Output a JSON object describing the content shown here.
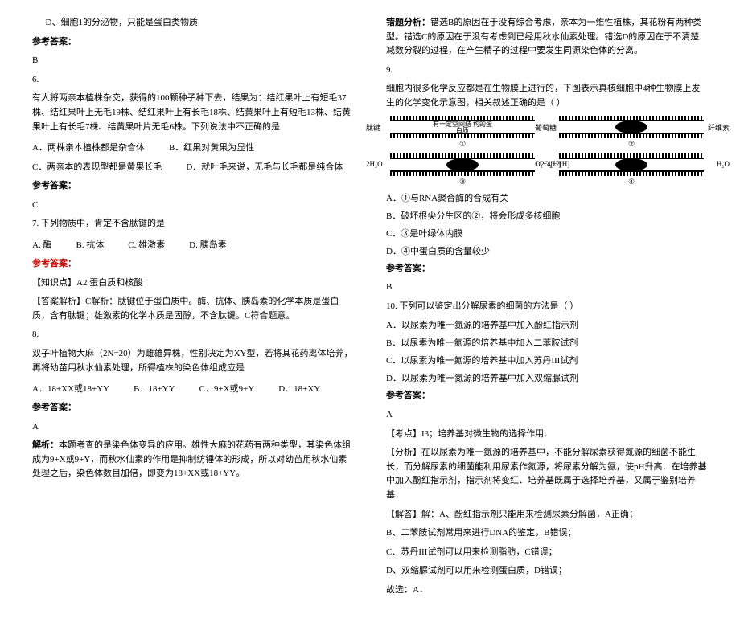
{
  "left": {
    "q5_d": "D、细胞1的分泌物，只能是蛋白类物质",
    "ans_label": "参考答案：",
    "ans5": "B",
    "q6_num": "6.",
    "q6_body": "有人将两亲本植株杂交，获得的100颗种子种下去，结果为：结红果叶上有短毛37株、结红果叶上无毛19株、结红果叶上有长毛18株、结黄果叶上有短毛13株、结黄果叶上有长毛7株、结黄果叶片无毛6株。下列说法中不正确的是",
    "q6_a": "A．两株亲本植株都是杂合体",
    "q6_b": "B．红果对黄果为显性",
    "q6_c": "C．两亲本的表现型都是黄果长毛",
    "q6_d": "D．就叶毛来说，无毛与长毛都是纯合体",
    "ans6": "C",
    "q7": "7. 下列物质中，肯定不含肽键的是",
    "q7_a": "A. 酶",
    "q7_b": "B. 抗体",
    "q7_c": "C. 雄激素",
    "q7_d": "D. 胰岛素",
    "kp_label": "【知识点】",
    "kp7": "A2  蛋白质和核酸",
    "exp_label": "【答案解析】",
    "exp7": "C解析：肽键位于蛋白质中。酶、抗体、胰岛素的化学本质是蛋白质，含有肽键；雄激素的化学本质是固醇，不含肽键。C符合题意。",
    "q8_num": "8.",
    "q8_body": "双子叶植物大麻（2N=20）为雌雄异株，性别决定为XY型，若将其花药离体培养，再将幼苗用秋水仙素处理，所得植株的染色体组成应是",
    "q8_a": "A．18+XX或18+YY",
    "q8_b": "B．18+YY",
    "q8_c": "C．9+X或9+Y",
    "q8_d": "D．18+XY",
    "ans8": "A",
    "exp8_label": "解析：",
    "exp8": "本题考查的是染色体变异的应用。雄性大麻的花药有两种类型，其染色体组成为9+X或9+Y，而秋水仙素的作用是抑制纺锤体的形成，所以对幼苗用秋水仙素处理之后，染色体数目加倍，即变为18+XX或18+YY。"
  },
  "right": {
    "err_label": "错题分析：",
    "err": "错选B的原因在于没有综合考虑，亲本为一维性植株，其花粉有两种类型。错选C的原因在于没有考虑到已经用秋水仙素处理。错选D的原因在于不清楚减数分裂的过程，在产生精子的过程中要发生同源染色体的分离。",
    "q9_num": "9.",
    "q9_body": "细胞内很多化学反应都是在生物膜上进行的，下图表示真核细胞中4种生物膜上发生的化学变化示意图，相关叙述正确的是（    ）",
    "d_tl_left": "肽键",
    "d_tl_center": "有一定空间结\n构的蛋白质",
    "d_tl_num": "①",
    "d_tr_left": "葡萄糖",
    "d_tr_right": "纤维素",
    "d_tr_num": "②",
    "d_bl_left": "2H₂O",
    "d_bl_right": "O₂+4[H]",
    "d_bl_num": "③",
    "d_br_left": "1/2O₂+2[H]",
    "d_br_right": "H₂O",
    "d_br_num": "④",
    "q9_a": "A．①与RNA聚合酶的合成有关",
    "q9_b": "B．破坏根尖分生区的②，将会形成多核细胞",
    "q9_c": "C．③是叶绿体内膜",
    "q9_d": "D．④中蛋白质的含量较少",
    "ans9": "B",
    "q10": "10. 下列可以鉴定出分解尿素的细菌的方法是（    ）",
    "q10_a": "A．以尿素为唯一氮源的培养基中加入酚红指示剂",
    "q10_b": "B．以尿素为唯一氮源的培养基中加入二苯胺试剂",
    "q10_c": "C．以尿素为唯一氮源的培养基中加入苏丹III试剂",
    "q10_d": "D．以尿素为唯一氮源的培养基中加入双缩脲试剂",
    "ans10": "A",
    "kp10_label": "【考点】",
    "kp10": "I3；培养基对微生物的选择作用．",
    "an_label": "【分析】",
    "an10": "在以尿素为唯一氮源的培养基中，不能分解尿素获得氮源的细菌不能生长，而分解尿素的细菌能利用尿素作氮源，将尿素分解为氨，使pH升高．在培养基中加入酚红指示剂，指示剂将变红．培养基既属于选择培养基，又属于鉴别培养基．",
    "sol_label": "【解答】",
    "sol_a": "解：A、酚红指示剂只能用来检测尿素分解菌，A正确；",
    "sol_b": "B、二苯胺试剂常用来进行DNA的鉴定，B错误；",
    "sol_c": "C、苏丹III试剂可以用来检测脂肪，C错误；",
    "sol_d": "D、双缩脲试剂可以用来检测蛋白质，D错误；",
    "sol_end": "故选：A．"
  }
}
